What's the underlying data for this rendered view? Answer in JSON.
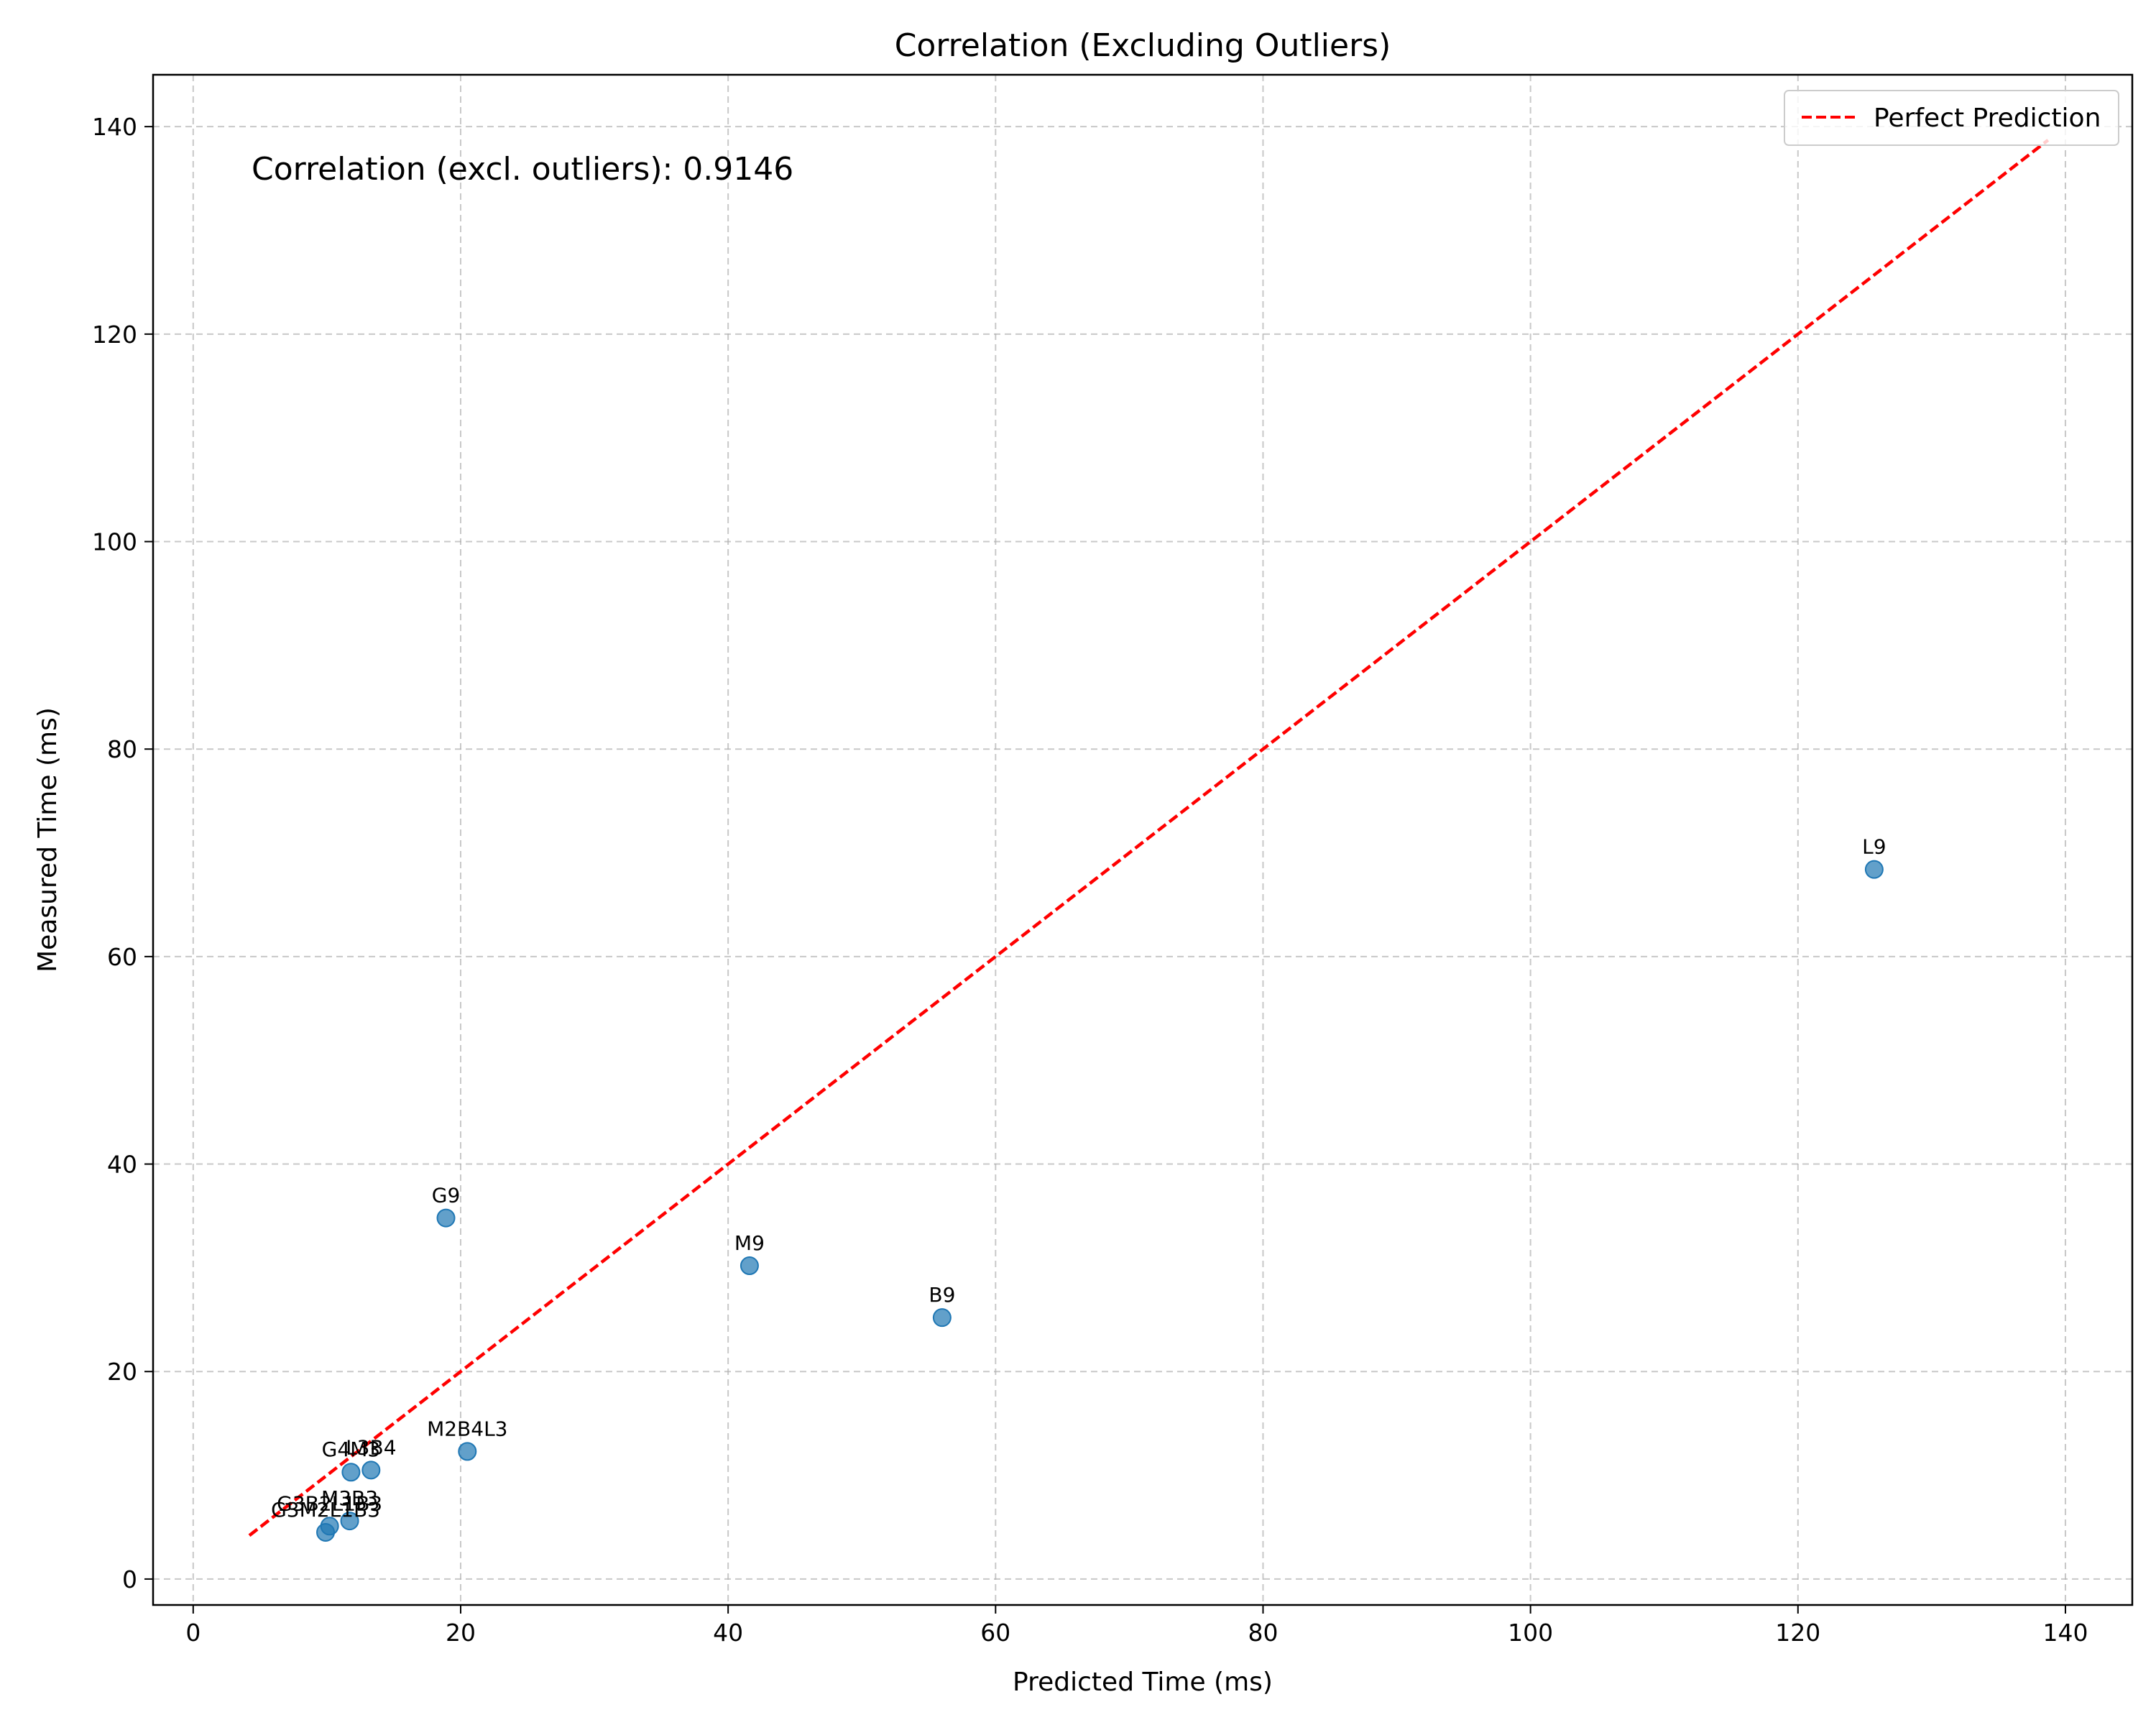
{
  "chart_data": {
    "type": "scatter",
    "title": "Correlation (Excluding Outliers)",
    "xlabel": "Predicted Time (ms)",
    "ylabel": "Measured Time (ms)",
    "xlim": [
      -3,
      145
    ],
    "ylim": [
      -2.5,
      145
    ],
    "xticks": [
      0,
      20,
      40,
      60,
      80,
      100,
      120,
      140
    ],
    "yticks": [
      0,
      20,
      40,
      60,
      80,
      100,
      120,
      140
    ],
    "grid": true,
    "legend_position": "top-right",
    "annotation": "Correlation (excl. outliers): 0.9146",
    "points": [
      {
        "label": "L9",
        "x": 125.7,
        "y": 68.4
      },
      {
        "label": "G9",
        "x": 18.9,
        "y": 34.8
      },
      {
        "label": "M9",
        "x": 41.6,
        "y": 30.2
      },
      {
        "label": "B9",
        "x": 56.0,
        "y": 25.2
      },
      {
        "label": "M2B4L3",
        "x": 20.5,
        "y": 12.3
      },
      {
        "label": "G4M3",
        "x": 11.8,
        "y": 10.3
      },
      {
        "label": "L3B4",
        "x": 13.3,
        "y": 10.5
      },
      {
        "label": "G3B2L1B3",
        "x": 10.2,
        "y": 5.1
      },
      {
        "label": "M3B3",
        "x": 11.7,
        "y": 5.6
      },
      {
        "label": "G3M2L1B3",
        "x": 9.9,
        "y": 4.5
      }
    ],
    "series": [
      {
        "name": "Perfect Prediction",
        "style": "dashed",
        "color": "#ff0000",
        "x": [
          4.2,
          138.7
        ],
        "y": [
          4.2,
          138.7
        ]
      }
    ],
    "point_color": "#1f77b4"
  }
}
